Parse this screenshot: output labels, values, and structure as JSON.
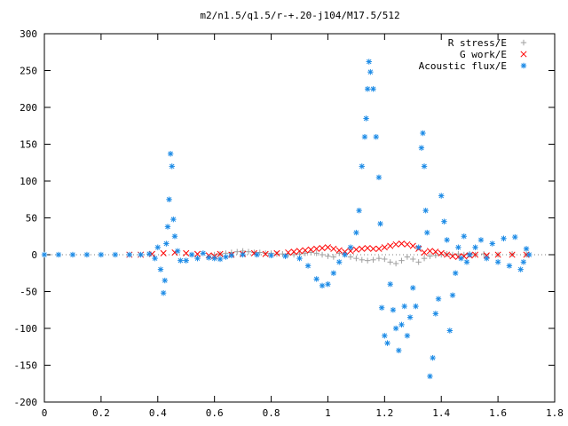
{
  "chart_data": {
    "type": "scatter",
    "title": "m2/n1.5/q1.5/r-+.20-j104/M17.5/512",
    "xlabel": "",
    "ylabel": "",
    "xlim": [
      0,
      1.8
    ],
    "ylim": [
      -200,
      300
    ],
    "x_ticks": [
      "0",
      "0.2",
      "0.4",
      "0.6",
      "0.8",
      "1",
      "1.2",
      "1.4",
      "1.6",
      "1.8"
    ],
    "y_ticks": [
      "300",
      "250",
      "200",
      "150",
      "100",
      "50",
      "0",
      "-50",
      "-100",
      "-150",
      "-200"
    ],
    "legend_position": "top-right",
    "grid": false,
    "series": [
      {
        "name": "R stress/E",
        "marker": "+",
        "color": "#a0a0a0",
        "points": [
          [
            0.6,
            0
          ],
          [
            0.62,
            1
          ],
          [
            0.64,
            2
          ],
          [
            0.66,
            3
          ],
          [
            0.68,
            4
          ],
          [
            0.7,
            5
          ],
          [
            0.72,
            4
          ],
          [
            0.74,
            3
          ],
          [
            0.76,
            3
          ],
          [
            0.78,
            2
          ],
          [
            0.8,
            2
          ],
          [
            0.82,
            1
          ],
          [
            0.84,
            1
          ],
          [
            0.86,
            0
          ],
          [
            0.88,
            0
          ],
          [
            0.9,
            1
          ],
          [
            0.92,
            2
          ],
          [
            0.94,
            3
          ],
          [
            0.96,
            2
          ],
          [
            0.98,
            0
          ],
          [
            1.0,
            -2
          ],
          [
            1.02,
            -3
          ],
          [
            1.04,
            2
          ],
          [
            1.06,
            0
          ],
          [
            1.08,
            -3
          ],
          [
            1.1,
            -5
          ],
          [
            1.12,
            -7
          ],
          [
            1.14,
            -8
          ],
          [
            1.16,
            -7
          ],
          [
            1.18,
            -5
          ],
          [
            1.2,
            -6
          ],
          [
            1.22,
            -10
          ],
          [
            1.24,
            -12
          ],
          [
            1.26,
            -8
          ],
          [
            1.28,
            -3
          ],
          [
            1.3,
            -6
          ],
          [
            1.32,
            -10
          ],
          [
            1.34,
            -5
          ],
          [
            1.36,
            -2
          ],
          [
            1.38,
            -1
          ],
          [
            1.4,
            0
          ],
          [
            1.42,
            1
          ],
          [
            1.44,
            0
          ],
          [
            1.46,
            1
          ],
          [
            1.48,
            0
          ],
          [
            1.5,
            1
          ],
          [
            1.52,
            0
          ],
          [
            1.55,
            1
          ],
          [
            1.6,
            0
          ],
          [
            1.65,
            1
          ],
          [
            1.7,
            0
          ]
        ]
      },
      {
        "name": "G work/E",
        "marker": "x",
        "color": "#ff0000",
        "points": [
          [
            0.3,
            0
          ],
          [
            0.34,
            0
          ],
          [
            0.38,
            1
          ],
          [
            0.42,
            2
          ],
          [
            0.46,
            3
          ],
          [
            0.5,
            2
          ],
          [
            0.54,
            1
          ],
          [
            0.58,
            -1
          ],
          [
            0.6,
            -2
          ],
          [
            0.62,
            1
          ],
          [
            0.66,
            0
          ],
          [
            0.7,
            1
          ],
          [
            0.74,
            2
          ],
          [
            0.78,
            1
          ],
          [
            0.82,
            2
          ],
          [
            0.86,
            3
          ],
          [
            0.88,
            4
          ],
          [
            0.9,
            5
          ],
          [
            0.92,
            6
          ],
          [
            0.94,
            7
          ],
          [
            0.96,
            8
          ],
          [
            0.98,
            9
          ],
          [
            1.0,
            10
          ],
          [
            1.02,
            8
          ],
          [
            1.04,
            6
          ],
          [
            1.06,
            4
          ],
          [
            1.08,
            5
          ],
          [
            1.1,
            7
          ],
          [
            1.12,
            8
          ],
          [
            1.14,
            9
          ],
          [
            1.16,
            8
          ],
          [
            1.18,
            8
          ],
          [
            1.2,
            10
          ],
          [
            1.22,
            12
          ],
          [
            1.24,
            14
          ],
          [
            1.26,
            15
          ],
          [
            1.28,
            14
          ],
          [
            1.3,
            12
          ],
          [
            1.32,
            8
          ],
          [
            1.34,
            3
          ],
          [
            1.36,
            5
          ],
          [
            1.38,
            4
          ],
          [
            1.4,
            2
          ],
          [
            1.42,
            0
          ],
          [
            1.44,
            -2
          ],
          [
            1.46,
            -3
          ],
          [
            1.48,
            -2
          ],
          [
            1.5,
            -1
          ],
          [
            1.52,
            0
          ],
          [
            1.56,
            -1
          ],
          [
            1.6,
            0
          ],
          [
            1.65,
            0
          ],
          [
            1.7,
            0
          ]
        ]
      },
      {
        "name": "Acoustic flux/E",
        "marker": "*",
        "color": "#1a8ae6",
        "points": [
          [
            0.0,
            0
          ],
          [
            0.05,
            0
          ],
          [
            0.1,
            0
          ],
          [
            0.15,
            0
          ],
          [
            0.2,
            0
          ],
          [
            0.25,
            0
          ],
          [
            0.3,
            0
          ],
          [
            0.34,
            0
          ],
          [
            0.37,
            1
          ],
          [
            0.39,
            -5
          ],
          [
            0.4,
            10
          ],
          [
            0.41,
            -20
          ],
          [
            0.42,
            -52
          ],
          [
            0.425,
            -35
          ],
          [
            0.43,
            15
          ],
          [
            0.435,
            38
          ],
          [
            0.44,
            75
          ],
          [
            0.445,
            137
          ],
          [
            0.45,
            120
          ],
          [
            0.455,
            48
          ],
          [
            0.46,
            25
          ],
          [
            0.47,
            5
          ],
          [
            0.48,
            -8
          ],
          [
            0.5,
            -8
          ],
          [
            0.52,
            0
          ],
          [
            0.54,
            -5
          ],
          [
            0.56,
            2
          ],
          [
            0.58,
            -4
          ],
          [
            0.6,
            -5
          ],
          [
            0.62,
            -6
          ],
          [
            0.64,
            -3
          ],
          [
            0.66,
            -1
          ],
          [
            0.7,
            0
          ],
          [
            0.75,
            0
          ],
          [
            0.8,
            -1
          ],
          [
            0.85,
            -2
          ],
          [
            0.9,
            -5
          ],
          [
            0.93,
            -15
          ],
          [
            0.96,
            -33
          ],
          [
            0.98,
            -42
          ],
          [
            1.0,
            -40
          ],
          [
            1.02,
            -25
          ],
          [
            1.04,
            -10
          ],
          [
            1.06,
            0
          ],
          [
            1.08,
            10
          ],
          [
            1.1,
            30
          ],
          [
            1.11,
            60
          ],
          [
            1.12,
            120
          ],
          [
            1.13,
            160
          ],
          [
            1.135,
            185
          ],
          [
            1.14,
            225
          ],
          [
            1.145,
            262
          ],
          [
            1.15,
            248
          ],
          [
            1.16,
            225
          ],
          [
            1.17,
            160
          ],
          [
            1.18,
            105
          ],
          [
            1.185,
            42
          ],
          [
            1.19,
            -72
          ],
          [
            1.2,
            -110
          ],
          [
            1.21,
            -120
          ],
          [
            1.22,
            -40
          ],
          [
            1.23,
            -75
          ],
          [
            1.24,
            -100
          ],
          [
            1.25,
            -130
          ],
          [
            1.26,
            -95
          ],
          [
            1.27,
            -70
          ],
          [
            1.28,
            -110
          ],
          [
            1.29,
            -85
          ],
          [
            1.3,
            -45
          ],
          [
            1.31,
            -70
          ],
          [
            1.32,
            10
          ],
          [
            1.33,
            145
          ],
          [
            1.335,
            165
          ],
          [
            1.34,
            120
          ],
          [
            1.345,
            60
          ],
          [
            1.35,
            30
          ],
          [
            1.36,
            -165
          ],
          [
            1.37,
            -140
          ],
          [
            1.38,
            -80
          ],
          [
            1.39,
            -60
          ],
          [
            1.4,
            80
          ],
          [
            1.41,
            45
          ],
          [
            1.42,
            20
          ],
          [
            1.43,
            -103
          ],
          [
            1.44,
            -55
          ],
          [
            1.45,
            -25
          ],
          [
            1.46,
            10
          ],
          [
            1.47,
            -5
          ],
          [
            1.48,
            25
          ],
          [
            1.49,
            -10
          ],
          [
            1.5,
            0
          ],
          [
            1.52,
            10
          ],
          [
            1.54,
            20
          ],
          [
            1.56,
            -5
          ],
          [
            1.58,
            15
          ],
          [
            1.6,
            -10
          ],
          [
            1.62,
            22
          ],
          [
            1.64,
            -15
          ],
          [
            1.66,
            24
          ],
          [
            1.68,
            -20
          ],
          [
            1.69,
            -10
          ],
          [
            1.7,
            8
          ],
          [
            1.71,
            0
          ]
        ]
      }
    ]
  }
}
